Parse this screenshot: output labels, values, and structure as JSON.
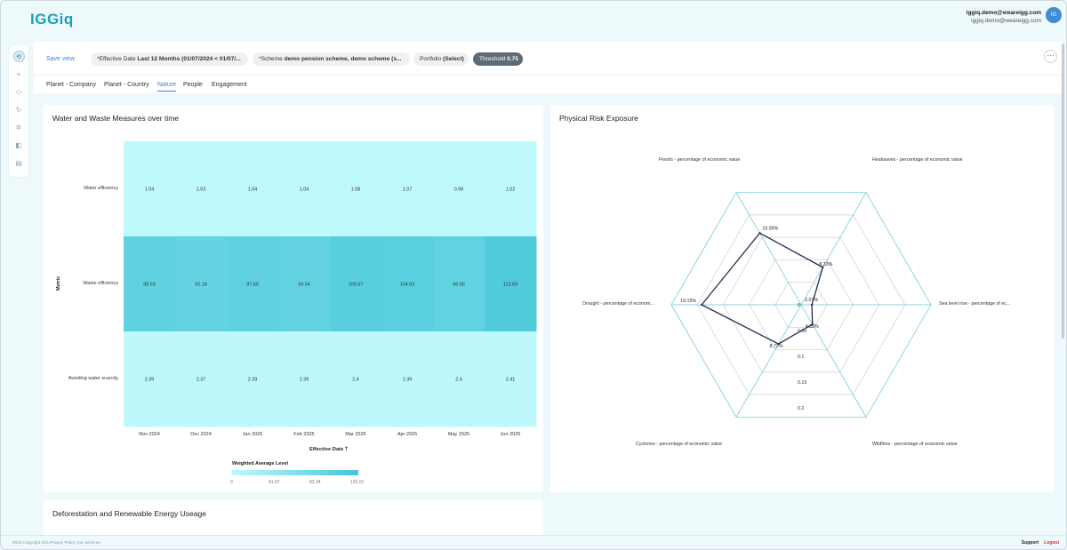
{
  "app": {
    "logo": "IGGiq"
  },
  "user": {
    "name": "iggiq.demo@weareigg.com",
    "email": "iggiq.demo@weareigg.com",
    "initials": "IG"
  },
  "rail_icons": [
    "dashboard-icon",
    "target-icon",
    "diamond-icon",
    "refresh-icon",
    "sparkle-icon",
    "layers-icon",
    "report-icon"
  ],
  "filters": {
    "save_view": "Save view",
    "chips": [
      {
        "prefix": "*Effective Date ",
        "value": "Last 12 Months (01/07/2024 < 01/07/..."
      },
      {
        "prefix": "*Scheme ",
        "value": "demo pension scheme, demo scheme (s..."
      },
      {
        "prefix": "Portfolio ",
        "value": "(Select)"
      },
      {
        "prefix": "Threshold ",
        "value": "0.75"
      }
    ],
    "more": "⋯"
  },
  "tabs": [
    "Planet - Company",
    "Planet - Country",
    "Nature",
    "People",
    "Engagement"
  ],
  "active_tab": 2,
  "water_card": {
    "title": "Water and Waste Measures over time",
    "chart_data": {
      "type": "heatmap",
      "title": "Water and Waste Measures over time",
      "xlabel": "Effective Date",
      "xlabel_suffix": "🡑",
      "ylabel": "Metric",
      "categories": [
        "Nov 2024",
        "Dec 2024",
        "Jan 2025",
        "Feb 2025",
        "Mar 2025",
        "Apr 2025",
        "May 2025",
        "Jun 2025"
      ],
      "rows": [
        "Water efficiency",
        "Waste efficiency",
        "Avoiding water scarcity"
      ],
      "values": [
        [
          1.04,
          1.03,
          1.04,
          1.04,
          1.08,
          1.07,
          0.99,
          1.02
        ],
        [
          98.63,
          92.18,
          97.69,
          94.04,
          105.67,
          104.03,
          96.56,
          113.69
        ],
        [
          2.39,
          2.37,
          2.39,
          2.39,
          2.4,
          2.39,
          2.4,
          2.41
        ]
      ],
      "value_labels": [
        [
          "1.04",
          "1.03",
          "1.04",
          "1.04",
          "1.08",
          "1.07",
          "0.99",
          "1.02"
        ],
        [
          "98.63",
          "92.18",
          "97.69",
          "94.04",
          "105.67",
          "104.03",
          "96.56",
          "113.69"
        ],
        [
          "2.39",
          "2.37",
          "2.39",
          "2.39",
          "2.4",
          "2.39",
          "2.4",
          "2.41"
        ]
      ],
      "legend_title": "Weighted Average Level",
      "legend_ticks": [
        "0",
        "41.67",
        "83.34",
        "125.01"
      ],
      "scale_min": 0,
      "scale_max": 125.01,
      "color_low": "#bff9fb",
      "color_high": "#45c6d9"
    }
  },
  "radar_card": {
    "title": "Physical Risk Exposure",
    "chart_data": {
      "type": "radar",
      "axes": [
        "Floods - percentage of economic value",
        "Heatwaves - percentage of economic value",
        "Sea level rise - percentage of ec...",
        "Wildfires - percentage of economic value",
        "Cyclones - percentage of economic value",
        "Drought - percentage of econom..."
      ],
      "values": [
        15.95,
        8.33,
        2.07,
        4.35,
        8.72,
        19.15
      ],
      "value_labels": [
        "15.95%",
        "8.33%",
        "2.07%",
        "4.35%",
        "8.72%",
        "19.15%"
      ],
      "ring_labels": [
        "0",
        "0.05",
        "0.1",
        "0.15",
        "0.2"
      ],
      "rmax": 0.25,
      "line_color": "#2b2a55",
      "grid_color": "#66c5d0"
    }
  },
  "deforestation_card": {
    "title": "Deforestation and Renewable Energy Useage"
  },
  "footer": {
    "copyright": "2025 Copyright IGG  Privacy Policy  Our Services",
    "support": "Support",
    "logout": "Logout"
  }
}
